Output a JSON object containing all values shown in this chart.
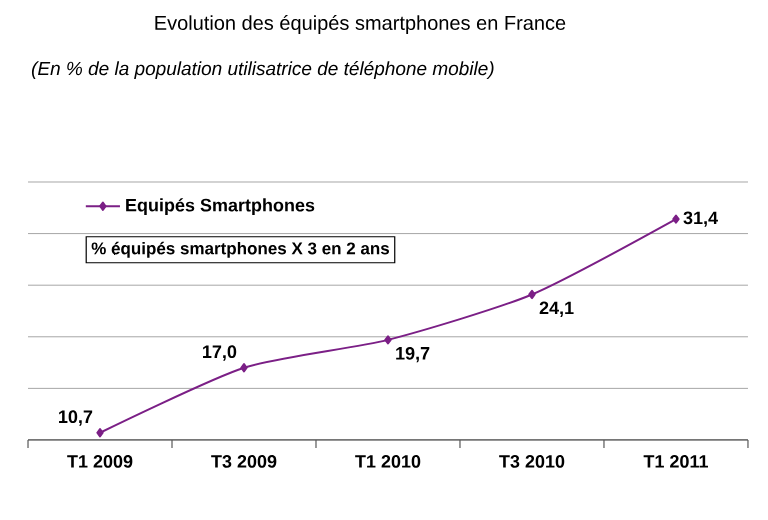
{
  "chart_data": {
    "type": "line",
    "title": "Evolution des équipés smartphones en France",
    "subtitle": "(En % de la population utilisatrice de téléphone mobile)",
    "categories": [
      "T1 2009",
      "T3 2009",
      "T1 2010",
      "T3 2010",
      "T1 2011"
    ],
    "series": [
      {
        "name": "Equipés Smartphones",
        "color": "#7b1f86",
        "values": [
          10.7,
          17.0,
          19.7,
          24.1,
          31.4
        ],
        "value_labels": [
          "10,7",
          "17,0",
          "19,7",
          "24,1",
          "31,4"
        ]
      }
    ],
    "ylim": [
      10,
      35
    ],
    "yticks": [
      {
        "value": 10,
        "label": null
      },
      {
        "value": 15,
        "label": null
      },
      {
        "value": 20,
        "label": null
      },
      {
        "value": 25,
        "label": null
      },
      {
        "value": 30,
        "label": null
      },
      {
        "value": 35,
        "label": null
      }
    ],
    "grid": "y",
    "tick_labels": "x",
    "legend": "top left",
    "marker": "diamond",
    "line_style": "solid",
    "annotations": [
      "% équipés smartphones X 3 en 2 ans"
    ]
  }
}
